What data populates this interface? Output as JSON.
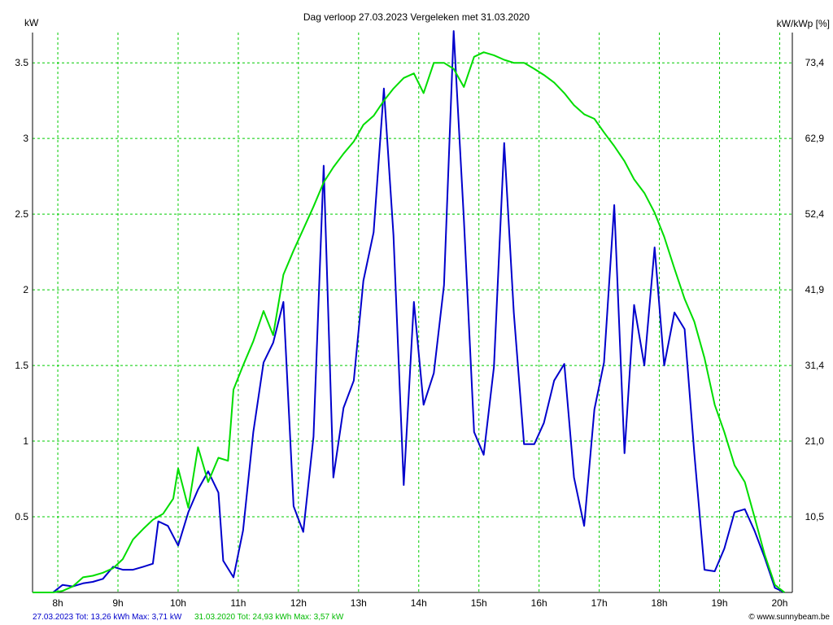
{
  "chart_data": {
    "type": "line",
    "title": "Dag  verloop 27.03.2023   Vergeleken met 31.03.2020",
    "ylabel_left": "kW",
    "ylabel_right": "kW/kWp [%]",
    "x_ticks": [
      "8h",
      "9h",
      "10h",
      "11h",
      "12h",
      "13h",
      "14h",
      "15h",
      "16h",
      "17h",
      "18h",
      "19h",
      "20h"
    ],
    "x_tick_values": [
      8,
      9,
      10,
      11,
      12,
      13,
      14,
      15,
      16,
      17,
      18,
      19,
      20
    ],
    "y_ticks": [
      "0.5",
      "1",
      "1.5",
      "2",
      "2.5",
      "3",
      "3.5"
    ],
    "y_tick_values": [
      0.5,
      1,
      1.5,
      2,
      2.5,
      3,
      3.5
    ],
    "y2_ticks": [
      "10,5",
      "21,0",
      "31,4",
      "41,9",
      "52,4",
      "62,9",
      "73,4"
    ],
    "xlim": [
      7.58,
      20.21
    ],
    "ylim": [
      0,
      3.7
    ],
    "grid": true,
    "series": [
      {
        "name": "27.03.2023 Tot: 13,26 kWh Max: 3,71 kW",
        "color": "#0000cc",
        "points": [
          [
            7.58,
            0
          ],
          [
            7.92,
            0
          ],
          [
            8.08,
            0.05
          ],
          [
            8.25,
            0.04
          ],
          [
            8.42,
            0.06
          ],
          [
            8.58,
            0.07
          ],
          [
            8.75,
            0.09
          ],
          [
            8.92,
            0.17
          ],
          [
            9.08,
            0.15
          ],
          [
            9.25,
            0.15
          ],
          [
            9.42,
            0.17
          ],
          [
            9.58,
            0.19
          ],
          [
            9.67,
            0.47
          ],
          [
            9.83,
            0.44
          ],
          [
            10.0,
            0.31
          ],
          [
            10.17,
            0.53
          ],
          [
            10.33,
            0.68
          ],
          [
            10.5,
            0.8
          ],
          [
            10.67,
            0.66
          ],
          [
            10.75,
            0.21
          ],
          [
            10.92,
            0.1
          ],
          [
            11.08,
            0.41
          ],
          [
            11.25,
            1.06
          ],
          [
            11.42,
            1.52
          ],
          [
            11.58,
            1.65
          ],
          [
            11.75,
            1.92
          ],
          [
            11.92,
            0.57
          ],
          [
            12.08,
            0.4
          ],
          [
            12.25,
            1.03
          ],
          [
            12.42,
            2.82
          ],
          [
            12.58,
            0.76
          ],
          [
            12.75,
            1.22
          ],
          [
            12.92,
            1.4
          ],
          [
            13.08,
            2.06
          ],
          [
            13.25,
            2.38
          ],
          [
            13.42,
            3.33
          ],
          [
            13.58,
            2.36
          ],
          [
            13.75,
            0.71
          ],
          [
            13.92,
            1.92
          ],
          [
            14.08,
            1.24
          ],
          [
            14.25,
            1.45
          ],
          [
            14.42,
            2.03
          ],
          [
            14.58,
            3.71
          ],
          [
            14.75,
            2.47
          ],
          [
            14.92,
            1.06
          ],
          [
            15.08,
            0.91
          ],
          [
            15.25,
            1.49
          ],
          [
            15.42,
            2.97
          ],
          [
            15.58,
            1.85
          ],
          [
            15.75,
            0.98
          ],
          [
            15.92,
            0.98
          ],
          [
            16.08,
            1.12
          ],
          [
            16.25,
            1.4
          ],
          [
            16.42,
            1.51
          ],
          [
            16.58,
            0.76
          ],
          [
            16.75,
            0.44
          ],
          [
            16.92,
            1.21
          ],
          [
            17.08,
            1.52
          ],
          [
            17.25,
            2.56
          ],
          [
            17.42,
            0.92
          ],
          [
            17.58,
            1.9
          ],
          [
            17.75,
            1.5
          ],
          [
            17.92,
            2.28
          ],
          [
            18.08,
            1.5
          ],
          [
            18.25,
            1.85
          ],
          [
            18.42,
            1.74
          ],
          [
            18.58,
            0.92
          ],
          [
            18.75,
            0.15
          ],
          [
            18.92,
            0.14
          ],
          [
            19.08,
            0.29
          ],
          [
            19.25,
            0.53
          ],
          [
            19.42,
            0.55
          ],
          [
            19.58,
            0.41
          ],
          [
            19.75,
            0.23
          ],
          [
            19.92,
            0.03
          ],
          [
            20.08,
            0
          ]
        ]
      },
      {
        "name": "31.03.2020 Tot: 24,93 kWh Max: 3,57 kW",
        "color": "#00dd00",
        "points": [
          [
            7.58,
            0
          ],
          [
            7.92,
            0
          ],
          [
            8.08,
            0.01
          ],
          [
            8.25,
            0.04
          ],
          [
            8.42,
            0.1
          ],
          [
            8.58,
            0.11
          ],
          [
            8.75,
            0.13
          ],
          [
            8.92,
            0.16
          ],
          [
            9.08,
            0.22
          ],
          [
            9.25,
            0.35
          ],
          [
            9.42,
            0.42
          ],
          [
            9.58,
            0.48
          ],
          [
            9.75,
            0.52
          ],
          [
            9.92,
            0.62
          ],
          [
            10.0,
            0.82
          ],
          [
            10.17,
            0.56
          ],
          [
            10.33,
            0.96
          ],
          [
            10.5,
            0.73
          ],
          [
            10.67,
            0.89
          ],
          [
            10.83,
            0.87
          ],
          [
            10.92,
            1.34
          ],
          [
            11.08,
            1.5
          ],
          [
            11.25,
            1.66
          ],
          [
            11.42,
            1.86
          ],
          [
            11.58,
            1.7
          ],
          [
            11.75,
            2.1
          ],
          [
            11.92,
            2.26
          ],
          [
            12.08,
            2.4
          ],
          [
            12.25,
            2.55
          ],
          [
            12.42,
            2.71
          ],
          [
            12.58,
            2.81
          ],
          [
            12.75,
            2.9
          ],
          [
            12.92,
            2.98
          ],
          [
            13.08,
            3.09
          ],
          [
            13.25,
            3.15
          ],
          [
            13.42,
            3.25
          ],
          [
            13.58,
            3.33
          ],
          [
            13.75,
            3.4
          ],
          [
            13.92,
            3.43
          ],
          [
            14.08,
            3.3
          ],
          [
            14.25,
            3.5
          ],
          [
            14.42,
            3.5
          ],
          [
            14.58,
            3.46
          ],
          [
            14.75,
            3.34
          ],
          [
            14.92,
            3.54
          ],
          [
            15.08,
            3.57
          ],
          [
            15.25,
            3.55
          ],
          [
            15.42,
            3.52
          ],
          [
            15.58,
            3.5
          ],
          [
            15.75,
            3.5
          ],
          [
            15.92,
            3.46
          ],
          [
            16.08,
            3.42
          ],
          [
            16.25,
            3.37
          ],
          [
            16.42,
            3.3
          ],
          [
            16.58,
            3.22
          ],
          [
            16.75,
            3.16
          ],
          [
            16.92,
            3.13
          ],
          [
            17.08,
            3.04
          ],
          [
            17.25,
            2.95
          ],
          [
            17.42,
            2.85
          ],
          [
            17.58,
            2.73
          ],
          [
            17.75,
            2.64
          ],
          [
            17.92,
            2.51
          ],
          [
            18.08,
            2.35
          ],
          [
            18.25,
            2.14
          ],
          [
            18.42,
            1.94
          ],
          [
            18.58,
            1.79
          ],
          [
            18.75,
            1.55
          ],
          [
            18.92,
            1.24
          ],
          [
            19.08,
            1.06
          ],
          [
            19.25,
            0.84
          ],
          [
            19.42,
            0.73
          ],
          [
            19.58,
            0.5
          ],
          [
            19.75,
            0.25
          ],
          [
            19.92,
            0.05
          ],
          [
            20.08,
            0
          ]
        ]
      }
    ],
    "footer": {
      "series1_summary": "27.03.2023 Tot: 13,26 kWh Max: 3,71 kW",
      "series2_summary": "31.03.2020 Tot: 24,93 kWh Max: 3,57 kW",
      "copyright": "© www.sunnybeam.be"
    }
  }
}
